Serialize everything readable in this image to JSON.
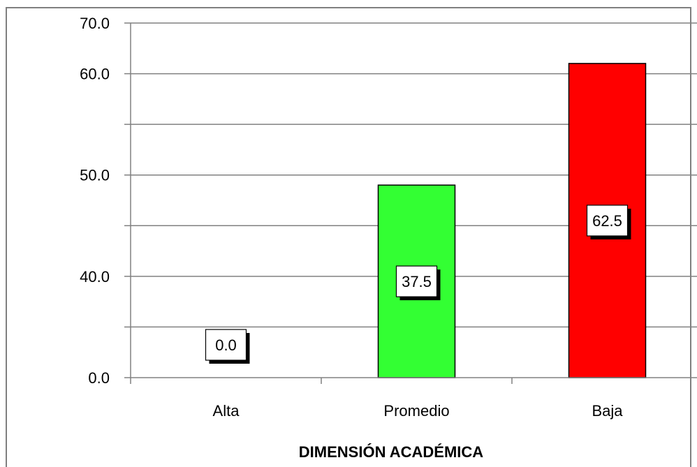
{
  "chart_data": {
    "type": "bar",
    "categories": [
      "Alta",
      "Promedio",
      "Baja"
    ],
    "values": [
      0.0,
      37.5,
      62.5
    ],
    "data_labels": [
      "0.0",
      "37.5",
      "62.5"
    ],
    "title": "",
    "xlabel": "DIMENSIÓN ACADÉMICA",
    "ylabel": "",
    "ylim": [
      0,
      70
    ],
    "y_tick_labels": [
      "0.0",
      "40.0",
      "50.0",
      "60.0",
      "70.0"
    ],
    "grid": true,
    "legend": "none",
    "bar_colors": [
      "#ffffff",
      "#33ff33",
      "#ff0000"
    ]
  }
}
